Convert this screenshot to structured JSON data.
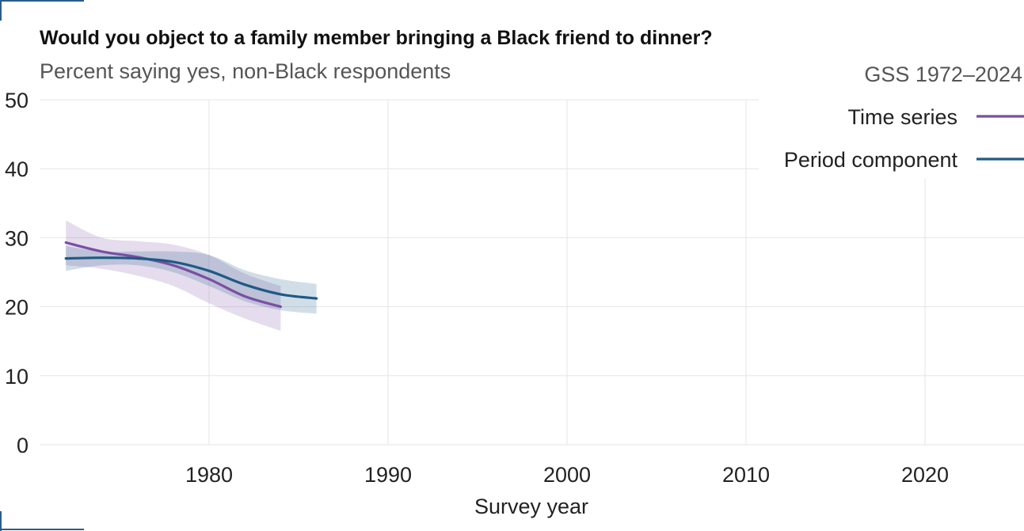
{
  "chart_data": {
    "type": "line",
    "title": "Would you object to a family member bringing a Black friend to dinner?",
    "subtitle": "Percent saying yes, non-Black respondents",
    "source": "GSS 1972–2024",
    "xlabel": "Survey year",
    "ylabel": "",
    "xlim": [
      1972,
      2025
    ],
    "ylim": [
      0,
      50
    ],
    "x_ticks": [
      1980,
      1990,
      2000,
      2010,
      2020
    ],
    "y_ticks": [
      0,
      10,
      20,
      30,
      40,
      50
    ],
    "grid": true,
    "legend_position": "top-right",
    "series": [
      {
        "name": "Time series",
        "color": "#7b4ea3",
        "x": [
          1972,
          1974,
          1976,
          1978,
          1980,
          1982,
          1984
        ],
        "y": [
          29.3,
          28.0,
          27.2,
          26.0,
          24.0,
          21.5,
          20.0
        ],
        "ci_lower": [
          26.0,
          25.5,
          24.5,
          23.0,
          20.5,
          18.3,
          16.5
        ],
        "ci_upper": [
          32.5,
          30.0,
          29.5,
          29.0,
          27.5,
          24.8,
          23.0
        ]
      },
      {
        "name": "Period component",
        "color": "#1f5a85",
        "x": [
          1972,
          1974,
          1976,
          1978,
          1980,
          1982,
          1984,
          1986
        ],
        "y": [
          27.0,
          27.1,
          27.0,
          26.5,
          25.2,
          23.2,
          21.8,
          21.2
        ],
        "ci_lower": [
          25.2,
          26.0,
          26.0,
          25.0,
          23.0,
          20.8,
          19.5,
          19.0
        ],
        "ci_upper": [
          28.8,
          28.0,
          28.0,
          28.0,
          27.5,
          25.3,
          24.0,
          23.3
        ]
      }
    ]
  }
}
